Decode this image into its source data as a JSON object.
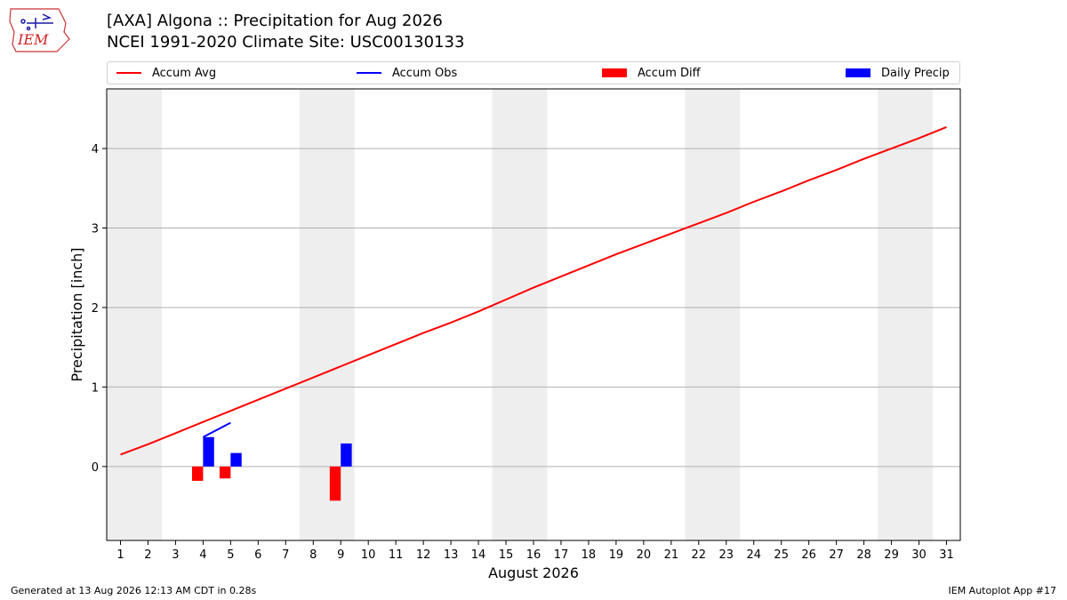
{
  "header": {
    "title_line1": "[AXA] Algona :: Precipitation for Aug 2026",
    "title_line2": "NCEI 1991-2020 Climate Site: USC00130133",
    "logo_text": "IEM"
  },
  "footer": {
    "generated": "Generated at 13 Aug 2026 12:13 AM CDT in 0.28s",
    "app": "IEM Autoplot App #17"
  },
  "chart_data": {
    "type": "bar",
    "title": "[AXA] Algona :: Precipitation for Aug 2026",
    "subtitle": "NCEI 1991-2020 Climate Site: USC00130133",
    "xlabel": "August 2026",
    "ylabel": "Precipitation [inch]",
    "x": [
      1,
      2,
      3,
      4,
      5,
      6,
      7,
      8,
      9,
      10,
      11,
      12,
      13,
      14,
      15,
      16,
      17,
      18,
      19,
      20,
      21,
      22,
      23,
      24,
      25,
      26,
      27,
      28,
      29,
      30,
      31
    ],
    "xlim": [
      0.5,
      31.5
    ],
    "ylim": [
      -0.93,
      4.75
    ],
    "yticks": [
      0,
      1,
      2,
      3,
      4
    ],
    "grid": "y",
    "weekend_shading": [
      [
        0.5,
        2.5
      ],
      [
        7.5,
        9.5
      ],
      [
        14.5,
        16.5
      ],
      [
        21.5,
        23.5
      ],
      [
        28.5,
        30.5
      ]
    ],
    "legend_position": "top",
    "series": [
      {
        "name": "Accum Avg",
        "kind": "line",
        "color": "#ff0000",
        "x": [
          1,
          2,
          3,
          4,
          5,
          6,
          7,
          8,
          9,
          10,
          11,
          12,
          13,
          14,
          15,
          16,
          17,
          18,
          19,
          20,
          21,
          22,
          23,
          24,
          25,
          26,
          27,
          28,
          29,
          30,
          31
        ],
        "values": [
          0.15,
          0.28,
          0.42,
          0.56,
          0.7,
          0.84,
          0.98,
          1.12,
          1.26,
          1.4,
          1.54,
          1.68,
          1.81,
          1.95,
          2.1,
          2.25,
          2.39,
          2.53,
          2.67,
          2.8,
          2.93,
          3.06,
          3.19,
          3.33,
          3.46,
          3.6,
          3.73,
          3.87,
          4.0,
          4.13,
          4.27
        ]
      },
      {
        "name": "Accum Obs",
        "kind": "line",
        "color": "#0000ff",
        "x": [
          4,
          5
        ],
        "values": [
          0.37,
          0.55
        ]
      },
      {
        "name": "Accum Diff",
        "kind": "bar",
        "color": "#ff0000",
        "offset": -0.2,
        "x": [
          4,
          5,
          9
        ],
        "values": [
          -0.18,
          -0.15,
          -0.43
        ]
      },
      {
        "name": "Daily Precip",
        "kind": "bar",
        "color": "#0000ff",
        "offset": 0.2,
        "x": [
          4,
          5,
          9
        ],
        "values": [
          0.37,
          0.17,
          0.29
        ]
      }
    ]
  }
}
